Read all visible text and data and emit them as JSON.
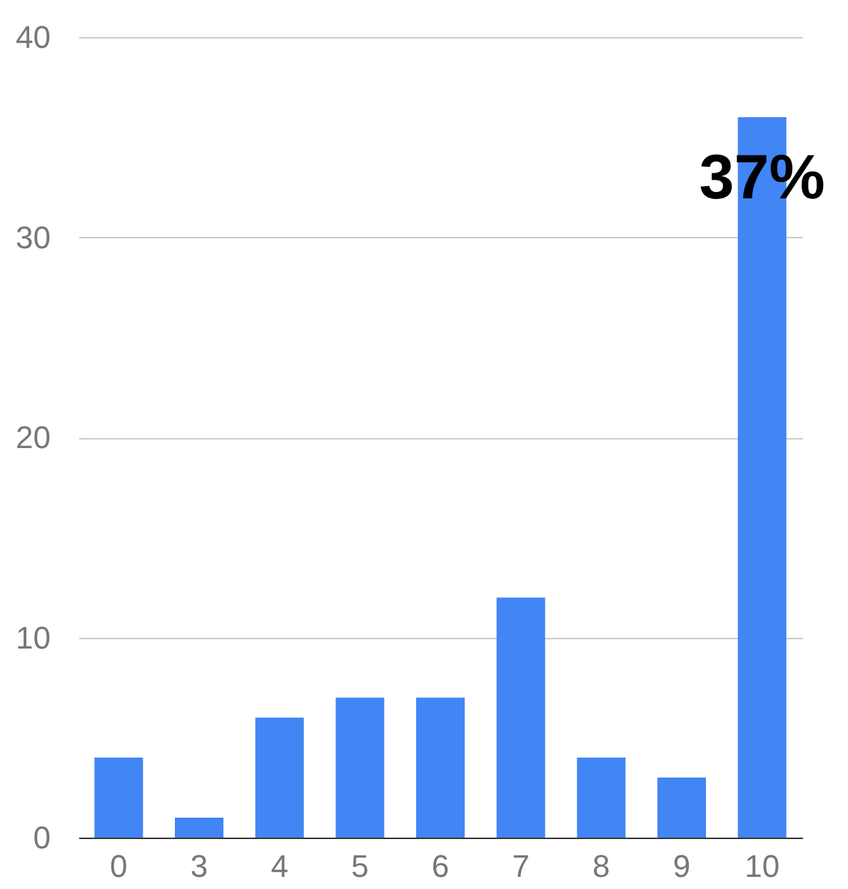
{
  "chart_data": {
    "type": "bar",
    "categories": [
      "0",
      "3",
      "4",
      "5",
      "6",
      "7",
      "8",
      "9",
      "10"
    ],
    "values": [
      4,
      1,
      6,
      7,
      7,
      12,
      4,
      3,
      36
    ],
    "color": "#4285f4",
    "ylim": [
      0,
      40
    ],
    "yticks": [
      0,
      10,
      20,
      30,
      40
    ],
    "grid": "y",
    "annotations": [
      "37%"
    ]
  }
}
